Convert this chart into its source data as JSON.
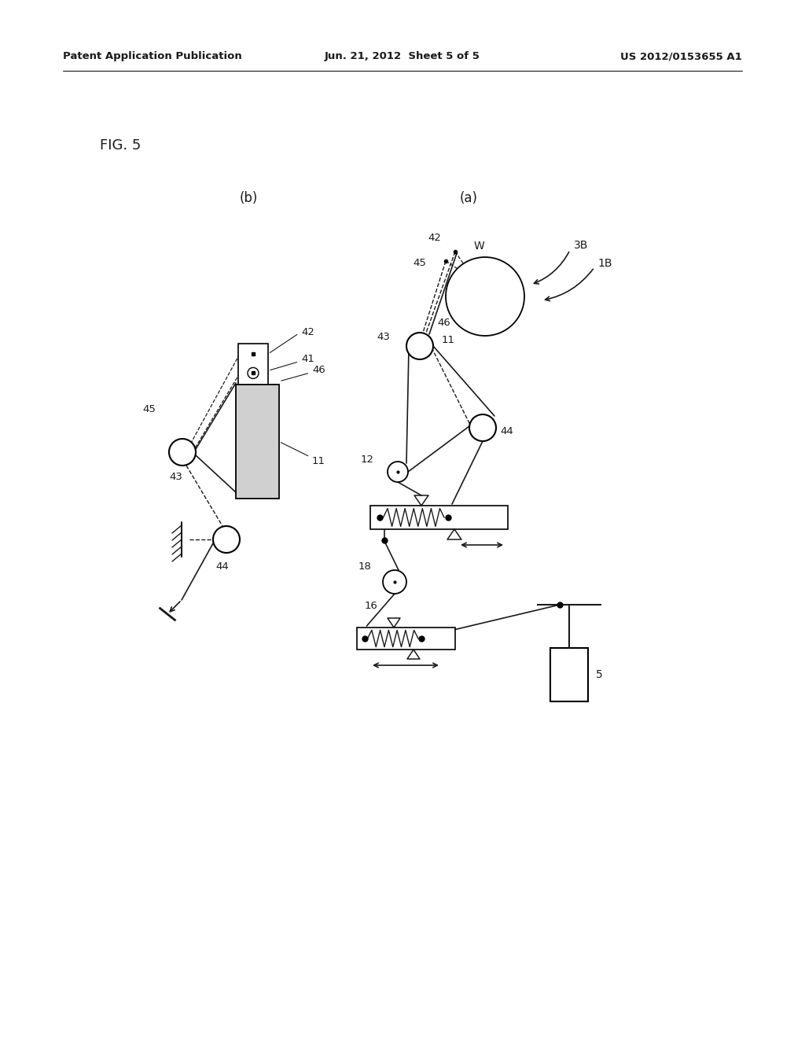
{
  "bg_color": "#ffffff",
  "text_color": "#1a1a1a",
  "line_color": "#1a1a1a",
  "header_left": "Patent Application Publication",
  "header_center": "Jun. 21, 2012  Sheet 5 of 5",
  "header_right": "US 2012/0153655 A1",
  "fig_label": "FIG. 5",
  "label_b": "(b)",
  "label_a": "(a)"
}
